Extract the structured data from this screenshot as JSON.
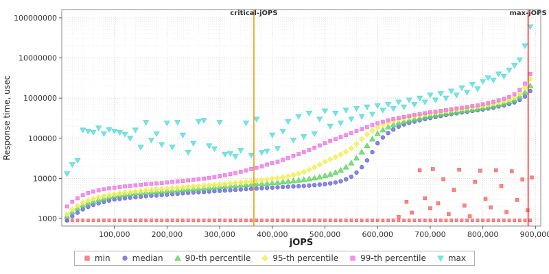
{
  "chart_data": {
    "type": "scatter",
    "title": "",
    "x_axis": {
      "label": "jOPS",
      "min": 0,
      "max": 910000,
      "ticks": [
        100000,
        200000,
        300000,
        400000,
        500000,
        600000,
        700000,
        800000,
        900000
      ],
      "tick_labels": [
        "100,000",
        "200,000",
        "300,000",
        "400,000",
        "500,000",
        "600,000",
        "700,000",
        "800,000",
        "900,000"
      ]
    },
    "y_axis": {
      "label": "Response time, usec",
      "scale": "log",
      "min": 650,
      "max": 160000000,
      "ticks": [
        1000,
        10000,
        100000,
        1000000,
        10000000,
        100000000
      ],
      "tick_labels": [
        "1000",
        "10000",
        "100000",
        "1000000",
        "10000000",
        "100000000"
      ]
    },
    "annotations": [
      {
        "label": "critical-jOPS",
        "x": 365000,
        "color": "#e0a010"
      },
      {
        "label": "max-jOPS",
        "x": 886000,
        "color": "#ff2a2a"
      }
    ],
    "series": [
      {
        "name": "min",
        "marker": "square",
        "color": "#f26c6c",
        "size": 2,
        "x_start": 10000,
        "x_step": 10000,
        "values": [
          900,
          900,
          900,
          900,
          900,
          900,
          900,
          900,
          900,
          900,
          900,
          900,
          900,
          900,
          900,
          900,
          900,
          900,
          900,
          900,
          900,
          900,
          900,
          900,
          900,
          900,
          900,
          900,
          900,
          900,
          900,
          900,
          900,
          900,
          900,
          900,
          900,
          900,
          900,
          900,
          900,
          900,
          900,
          900,
          900,
          900,
          900,
          900,
          900,
          900,
          900,
          900,
          900,
          900,
          900,
          900,
          900,
          900,
          900,
          900,
          900,
          900,
          900,
          900,
          900,
          900,
          900,
          900,
          900,
          900,
          900,
          900,
          900,
          900,
          900,
          900,
          900,
          900,
          900,
          900,
          900,
          900,
          900,
          900,
          900,
          900,
          900,
          900,
          900
        ]
      },
      {
        "name": "median",
        "marker": "circle",
        "color": "#6a6ad8",
        "size": 2.8,
        "x_start": 10000,
        "x_step": 10000,
        "values": [
          900,
          1150,
          1400,
          1700,
          1950,
          2200,
          2400,
          2600,
          2800,
          3000,
          3100,
          3200,
          3300,
          3400,
          3500,
          3600,
          3700,
          3750,
          3850,
          3950,
          4050,
          4150,
          4250,
          4350,
          4450,
          4550,
          4600,
          4700,
          4800,
          4900,
          5000,
          5100,
          5200,
          5300,
          5400,
          5500,
          5600,
          5700,
          5800,
          5900,
          6000,
          6100,
          6200,
          6300,
          6400,
          6500,
          6650,
          6800,
          7000,
          7200,
          7500,
          7900,
          8500,
          9500,
          11000,
          14000,
          19000,
          28000,
          45000,
          75000,
          105000,
          135000,
          165000,
          195000,
          220000,
          240000,
          260000,
          280000,
          300000,
          320000,
          340000,
          360000,
          380000,
          400000,
          420000,
          440000,
          460000,
          480000,
          500000,
          520000,
          550000,
          580000,
          620000,
          660000,
          710000,
          780000,
          900000,
          1100000,
          1500000
        ]
      },
      {
        "name": "90-th percentile",
        "marker": "triangle-up",
        "color": "#5fd45f",
        "size": 3,
        "x_start": 10000,
        "x_step": 10000,
        "values": [
          1150,
          1450,
          1800,
          2150,
          2450,
          2700,
          2950,
          3200,
          3450,
          3700,
          3850,
          4000,
          4150,
          4300,
          4400,
          4500,
          4600,
          4700,
          4800,
          4900,
          5000,
          5150,
          5300,
          5400,
          5500,
          5650,
          5800,
          5900,
          6050,
          6200,
          6350,
          6500,
          6650,
          6800,
          6950,
          7100,
          7250,
          7400,
          7550,
          7750,
          7950,
          8150,
          8400,
          8650,
          8950,
          9300,
          9700,
          10200,
          10800,
          11600,
          12600,
          14000,
          16000,
          19000,
          24000,
          32000,
          45000,
          65000,
          95000,
          130000,
          160000,
          190000,
          215000,
          240000,
          260000,
          280000,
          300000,
          320000,
          340000,
          360000,
          380000,
          400000,
          420000,
          440000,
          460000,
          480000,
          500000,
          520000,
          545000,
          570000,
          600000,
          640000,
          690000,
          745000,
          810000,
          910000,
          1100000,
          1400000,
          2000000
        ]
      },
      {
        "name": "95-th percentile",
        "marker": "diamond",
        "color": "#f2ee55",
        "size": 2.8,
        "x_start": 10000,
        "x_step": 10000,
        "values": [
          1300,
          1700,
          2100,
          2500,
          2850,
          3150,
          3400,
          3650,
          3850,
          4050,
          4250,
          4450,
          4600,
          4750,
          4900,
          5050,
          5200,
          5350,
          5500,
          5600,
          5750,
          5900,
          6050,
          6200,
          6350,
          6500,
          6650,
          6800,
          6950,
          7150,
          7350,
          7550,
          7750,
          7950,
          8200,
          8450,
          8750,
          9050,
          9400,
          9800,
          10200,
          10700,
          11300,
          12100,
          13100,
          14500,
          16500,
          19000,
          22000,
          26000,
          30000,
          34000,
          39000,
          46000,
          56000,
          72000,
          95000,
          125000,
          155000,
          185000,
          215000,
          245000,
          272000,
          298000,
          320000,
          340000,
          360000,
          380000,
          400000,
          420000,
          440000,
          460000,
          480000,
          500000,
          520000,
          545000,
          570000,
          595000,
          620000,
          650000,
          690000,
          735000,
          785000,
          845000,
          925000,
          1050000,
          1300000,
          1800000,
          3000000
        ]
      },
      {
        "name": "99-th percentile",
        "marker": "square",
        "color": "#ee7ae4",
        "size": 2.5,
        "x_start": 10000,
        "x_step": 10000,
        "values": [
          2000,
          2600,
          3200,
          3800,
          4300,
          4700,
          5050,
          5350,
          5650,
          5900,
          6100,
          6300,
          6500,
          6700,
          6900,
          7100,
          7300,
          7500,
          7700,
          7900,
          8150,
          8400,
          8650,
          8900,
          9200,
          9500,
          9900,
          10300,
          10800,
          11400,
          12000,
          12800,
          13600,
          14600,
          15800,
          17000,
          18500,
          20000,
          22000,
          24000,
          26000,
          29000,
          32000,
          36000,
          40000,
          45000,
          51000,
          58000,
          66000,
          75000,
          85000,
          95000,
          107000,
          120000,
          135000,
          152000,
          170000,
          190000,
          212000,
          235000,
          258000,
          280000,
          300000,
          320000,
          340000,
          360000,
          380000,
          400000,
          420000,
          440000,
          460000,
          480000,
          500000,
          525000,
          550000,
          575000,
          600000,
          630000,
          660000,
          700000,
          750000,
          810000,
          880000,
          960000,
          1060000,
          1250000,
          1600000,
          2300000,
          4000000
        ]
      },
      {
        "name": "max",
        "marker": "triangle-down",
        "color": "#5cdbdb",
        "size": 3,
        "x_start": 10000,
        "x_step": 10000,
        "values": [
          13000,
          22000,
          28000,
          160000,
          150000,
          140000,
          180000,
          130000,
          165000,
          150000,
          140000,
          125000,
          100000,
          160000,
          60000,
          250000,
          90000,
          130000,
          70000,
          240000,
          60000,
          250000,
          120000,
          45000,
          75000,
          260000,
          280000,
          65000,
          55000,
          250000,
          40000,
          42000,
          35000,
          50000,
          240000,
          38000,
          300000,
          44000,
          48000,
          120000,
          56000,
          150000,
          260000,
          90000,
          350000,
          110000,
          420000,
          130000,
          300000,
          480000,
          200000,
          420000,
          240000,
          500000,
          300000,
          550000,
          350000,
          600000,
          400000,
          650000,
          500000,
          700000,
          550000,
          800000,
          600000,
          900000,
          700000,
          1000000,
          800000,
          1200000,
          900000,
          1300000,
          1000000,
          1500000,
          1200000,
          1800000,
          1400000,
          2200000,
          1700000,
          2600000,
          3200000,
          2800000,
          4000000,
          3500000,
          5000000,
          6500000,
          9000000,
          20000000,
          60000000
        ]
      },
      {
        "name": "min-outliers",
        "marker": "square",
        "color": "#f26c6c",
        "size": 2.4,
        "points": [
          [
            640000,
            1100
          ],
          [
            655000,
            2600
          ],
          [
            665000,
            1400
          ],
          [
            680000,
            16000
          ],
          [
            690000,
            3200
          ],
          [
            700000,
            1800
          ],
          [
            705000,
            17000
          ],
          [
            715000,
            2400
          ],
          [
            725000,
            9500
          ],
          [
            735000,
            1300
          ],
          [
            745000,
            5200
          ],
          [
            755000,
            16500
          ],
          [
            765000,
            2100
          ],
          [
            775000,
            1150
          ],
          [
            785000,
            8200
          ],
          [
            795000,
            15500
          ],
          [
            805000,
            3100
          ],
          [
            815000,
            1900
          ],
          [
            825000,
            16000
          ],
          [
            835000,
            6400
          ],
          [
            845000,
            1450
          ],
          [
            855000,
            15000
          ],
          [
            865000,
            2900
          ],
          [
            875000,
            9400
          ],
          [
            885000,
            1600
          ],
          [
            893000,
            10500
          ]
        ]
      }
    ]
  },
  "legend": {
    "items": [
      {
        "label": "min",
        "marker": "square",
        "color": "#f26c6c"
      },
      {
        "label": "median",
        "marker": "circle",
        "color": "#6a6ad8"
      },
      {
        "label": "90-th percentile",
        "marker": "triangle-up",
        "color": "#5fd45f"
      },
      {
        "label": "95-th percentile",
        "marker": "diamond",
        "color": "#f2ee55"
      },
      {
        "label": "99-th percentile",
        "marker": "square",
        "color": "#ee7ae4"
      },
      {
        "label": "max",
        "marker": "triangle-down",
        "color": "#5cdbdb"
      }
    ]
  }
}
